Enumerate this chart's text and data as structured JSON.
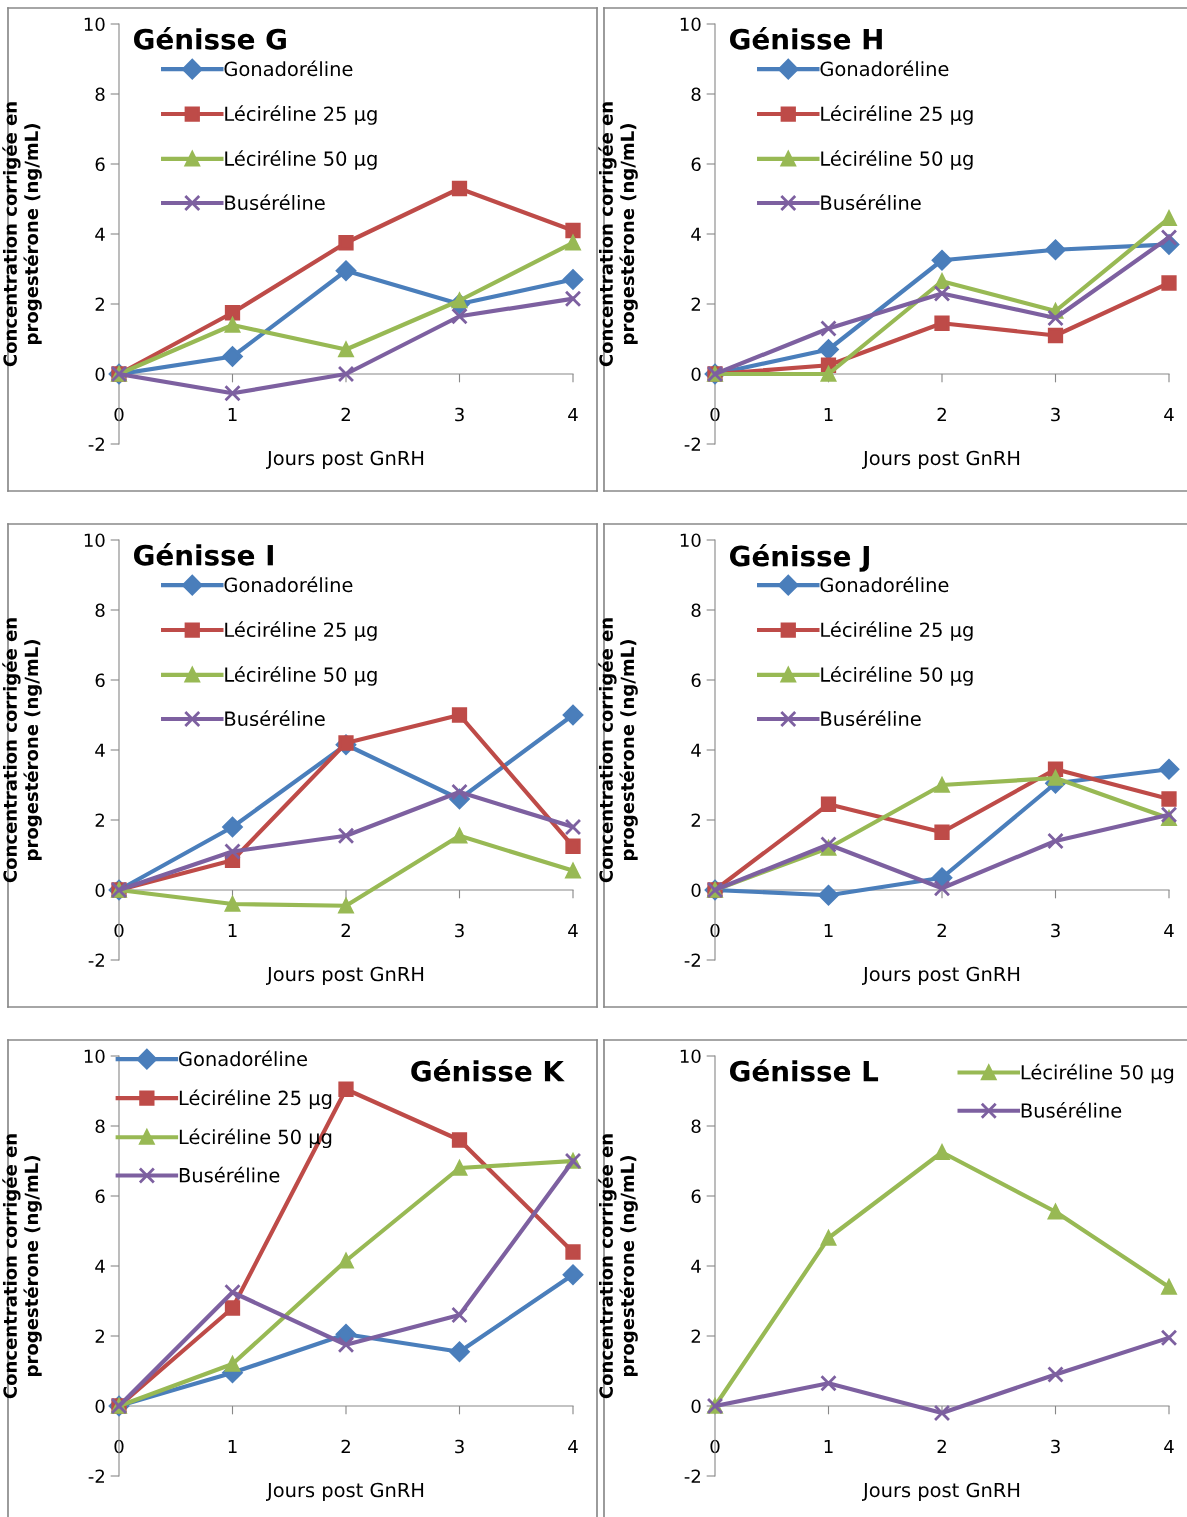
{
  "chart_data": [
    {
      "type": "line",
      "title": "Génisse G",
      "xlabel": "Jours post GnRH",
      "ylabel": "Concentration corrigée en\nprogestérone (ng/mL)",
      "x": [
        0,
        1,
        2,
        3,
        4
      ],
      "xlim": [
        0,
        4
      ],
      "xticks": [
        0,
        1,
        2,
        3,
        4
      ],
      "ylim": [
        -2,
        10
      ],
      "yticks": [
        -2,
        0,
        2,
        4,
        6,
        8,
        10
      ],
      "grid": false,
      "legend": "top left",
      "series": [
        {
          "name": "Gonadoréline",
          "color": "#4a7ebb",
          "marker": "diamond",
          "values": [
            0,
            0.5,
            2.95,
            2.0,
            2.7
          ]
        },
        {
          "name": "Léciréline 25 µg",
          "color": "#be4b48",
          "marker": "square",
          "values": [
            0,
            1.75,
            3.75,
            5.3,
            4.1
          ]
        },
        {
          "name": "Léciréline 50 µg",
          "color": "#98b954",
          "marker": "triangle",
          "values": [
            0,
            1.4,
            0.7,
            2.1,
            3.75
          ]
        },
        {
          "name": "Buséréline",
          "color": "#7d60a0",
          "marker": "cross",
          "values": [
            0,
            -0.55,
            0,
            1.65,
            2.15
          ]
        }
      ]
    },
    {
      "type": "line",
      "title": "Génisse H",
      "xlabel": "Jours post GnRH",
      "ylabel": "Concentration corrigée en\nprogestérone (ng/mL)",
      "x": [
        0,
        1,
        2,
        3,
        4
      ],
      "xlim": [
        0,
        4
      ],
      "xticks": [
        0,
        1,
        2,
        3,
        4
      ],
      "ylim": [
        -2,
        10
      ],
      "yticks": [
        -2,
        0,
        2,
        4,
        6,
        8,
        10
      ],
      "grid": false,
      "legend": "top left",
      "series": [
        {
          "name": "Gonadoréline",
          "color": "#4a7ebb",
          "marker": "diamond",
          "values": [
            0,
            0.7,
            3.25,
            3.55,
            3.7
          ]
        },
        {
          "name": "Léciréline 25 µg",
          "color": "#be4b48",
          "marker": "square",
          "values": [
            0,
            0.25,
            1.45,
            1.1,
            2.6
          ]
        },
        {
          "name": "Léciréline 50 µg",
          "color": "#98b954",
          "marker": "triangle",
          "values": [
            0,
            0,
            2.65,
            1.8,
            4.45
          ]
        },
        {
          "name": "Buséréline",
          "color": "#7d60a0",
          "marker": "cross",
          "values": [
            0,
            1.3,
            2.3,
            1.6,
            3.9
          ]
        }
      ]
    },
    {
      "type": "line",
      "title": "Génisse I",
      "xlabel": "Jours post GnRH",
      "ylabel": "Concentration corrigée en\nprogestérone (ng/mL)",
      "x": [
        0,
        1,
        2,
        3,
        4
      ],
      "xlim": [
        0,
        4
      ],
      "xticks": [
        0,
        1,
        2,
        3,
        4
      ],
      "ylim": [
        -2,
        10
      ],
      "yticks": [
        -2,
        0,
        2,
        4,
        6,
        8,
        10
      ],
      "grid": false,
      "legend": "top left",
      "series": [
        {
          "name": "Gonadoréline",
          "color": "#4a7ebb",
          "marker": "diamond",
          "values": [
            0,
            1.8,
            4.15,
            2.6,
            5.0
          ]
        },
        {
          "name": "Léciréline 25 µg",
          "color": "#be4b48",
          "marker": "square",
          "values": [
            0,
            0.85,
            4.2,
            5.0,
            1.25
          ]
        },
        {
          "name": "Léciréline 50 µg",
          "color": "#98b954",
          "marker": "triangle",
          "values": [
            0,
            -0.4,
            -0.45,
            1.55,
            0.55
          ]
        },
        {
          "name": "Buséréline",
          "color": "#7d60a0",
          "marker": "cross",
          "values": [
            0,
            1.1,
            1.55,
            2.8,
            1.8
          ]
        }
      ]
    },
    {
      "type": "line",
      "title": "Génisse J",
      "xlabel": "Jours post GnRH",
      "ylabel": "Concentration corrigée en\nprogestérone (ng/mL)",
      "x": [
        0,
        1,
        2,
        3,
        4
      ],
      "xlim": [
        0,
        4
      ],
      "xticks": [
        0,
        1,
        2,
        3,
        4
      ],
      "ylim": [
        -2,
        10
      ],
      "yticks": [
        -2,
        0,
        2,
        4,
        6,
        8,
        10
      ],
      "grid": false,
      "legend": "top left",
      "series": [
        {
          "name": "Gonadoréline",
          "color": "#4a7ebb",
          "marker": "diamond",
          "values": [
            0,
            -0.15,
            0.35,
            3.05,
            3.45
          ]
        },
        {
          "name": "Léciréline 25 µg",
          "color": "#be4b48",
          "marker": "square",
          "values": [
            0,
            2.45,
            1.65,
            3.45,
            2.6
          ]
        },
        {
          "name": "Léciréline 50 µg",
          "color": "#98b954",
          "marker": "triangle",
          "values": [
            0,
            1.2,
            3.0,
            3.2,
            2.05
          ]
        },
        {
          "name": "Buséréline",
          "color": "#7d60a0",
          "marker": "cross",
          "values": [
            0,
            1.3,
            0.05,
            1.4,
            2.15
          ]
        }
      ]
    },
    {
      "type": "line",
      "title": "Génisse K",
      "xlabel": "Jours post GnRH",
      "ylabel": "Concentration corrigée en\nprogestérone (ng/mL)",
      "x": [
        0,
        1,
        2,
        3,
        4
      ],
      "xlim": [
        0,
        4
      ],
      "xticks": [
        0,
        1,
        2,
        3,
        4
      ],
      "ylim": [
        -2,
        10
      ],
      "yticks": [
        -2,
        0,
        2,
        4,
        6,
        8,
        10
      ],
      "grid": false,
      "legend": "top left",
      "series": [
        {
          "name": "Gonadoréline",
          "color": "#4a7ebb",
          "marker": "diamond",
          "values": [
            0,
            0.95,
            2.05,
            1.55,
            3.75
          ]
        },
        {
          "name": "Léciréline 25 µg",
          "color": "#be4b48",
          "marker": "square",
          "values": [
            0,
            2.8,
            9.05,
            7.6,
            4.4
          ]
        },
        {
          "name": "Léciréline 50 µg",
          "color": "#98b954",
          "marker": "triangle",
          "values": [
            0,
            1.2,
            4.15,
            6.8,
            7.0
          ]
        },
        {
          "name": "Buséréline",
          "color": "#7d60a0",
          "marker": "cross",
          "values": [
            0,
            3.25,
            1.75,
            2.6,
            7.0
          ]
        }
      ]
    },
    {
      "type": "line",
      "title": "Génisse L",
      "xlabel": "Jours post GnRH",
      "ylabel": "Concentration corrigée en\nprogestérone (ng/mL)",
      "x": [
        0,
        1,
        2,
        3,
        4
      ],
      "xlim": [
        0,
        4
      ],
      "xticks": [
        0,
        1,
        2,
        3,
        4
      ],
      "ylim": [
        -2,
        10
      ],
      "yticks": [
        -2,
        0,
        2,
        4,
        6,
        8,
        10
      ],
      "grid": false,
      "legend": "top right",
      "series": [
        {
          "name": "Léciréline 50 µg",
          "color": "#98b954",
          "marker": "triangle",
          "values": [
            0,
            4.8,
            7.25,
            5.55,
            3.4
          ]
        },
        {
          "name": "Buséréline",
          "color": "#7d60a0",
          "marker": "cross",
          "values": [
            0,
            0.65,
            -0.2,
            0.9,
            1.95
          ]
        }
      ]
    }
  ]
}
